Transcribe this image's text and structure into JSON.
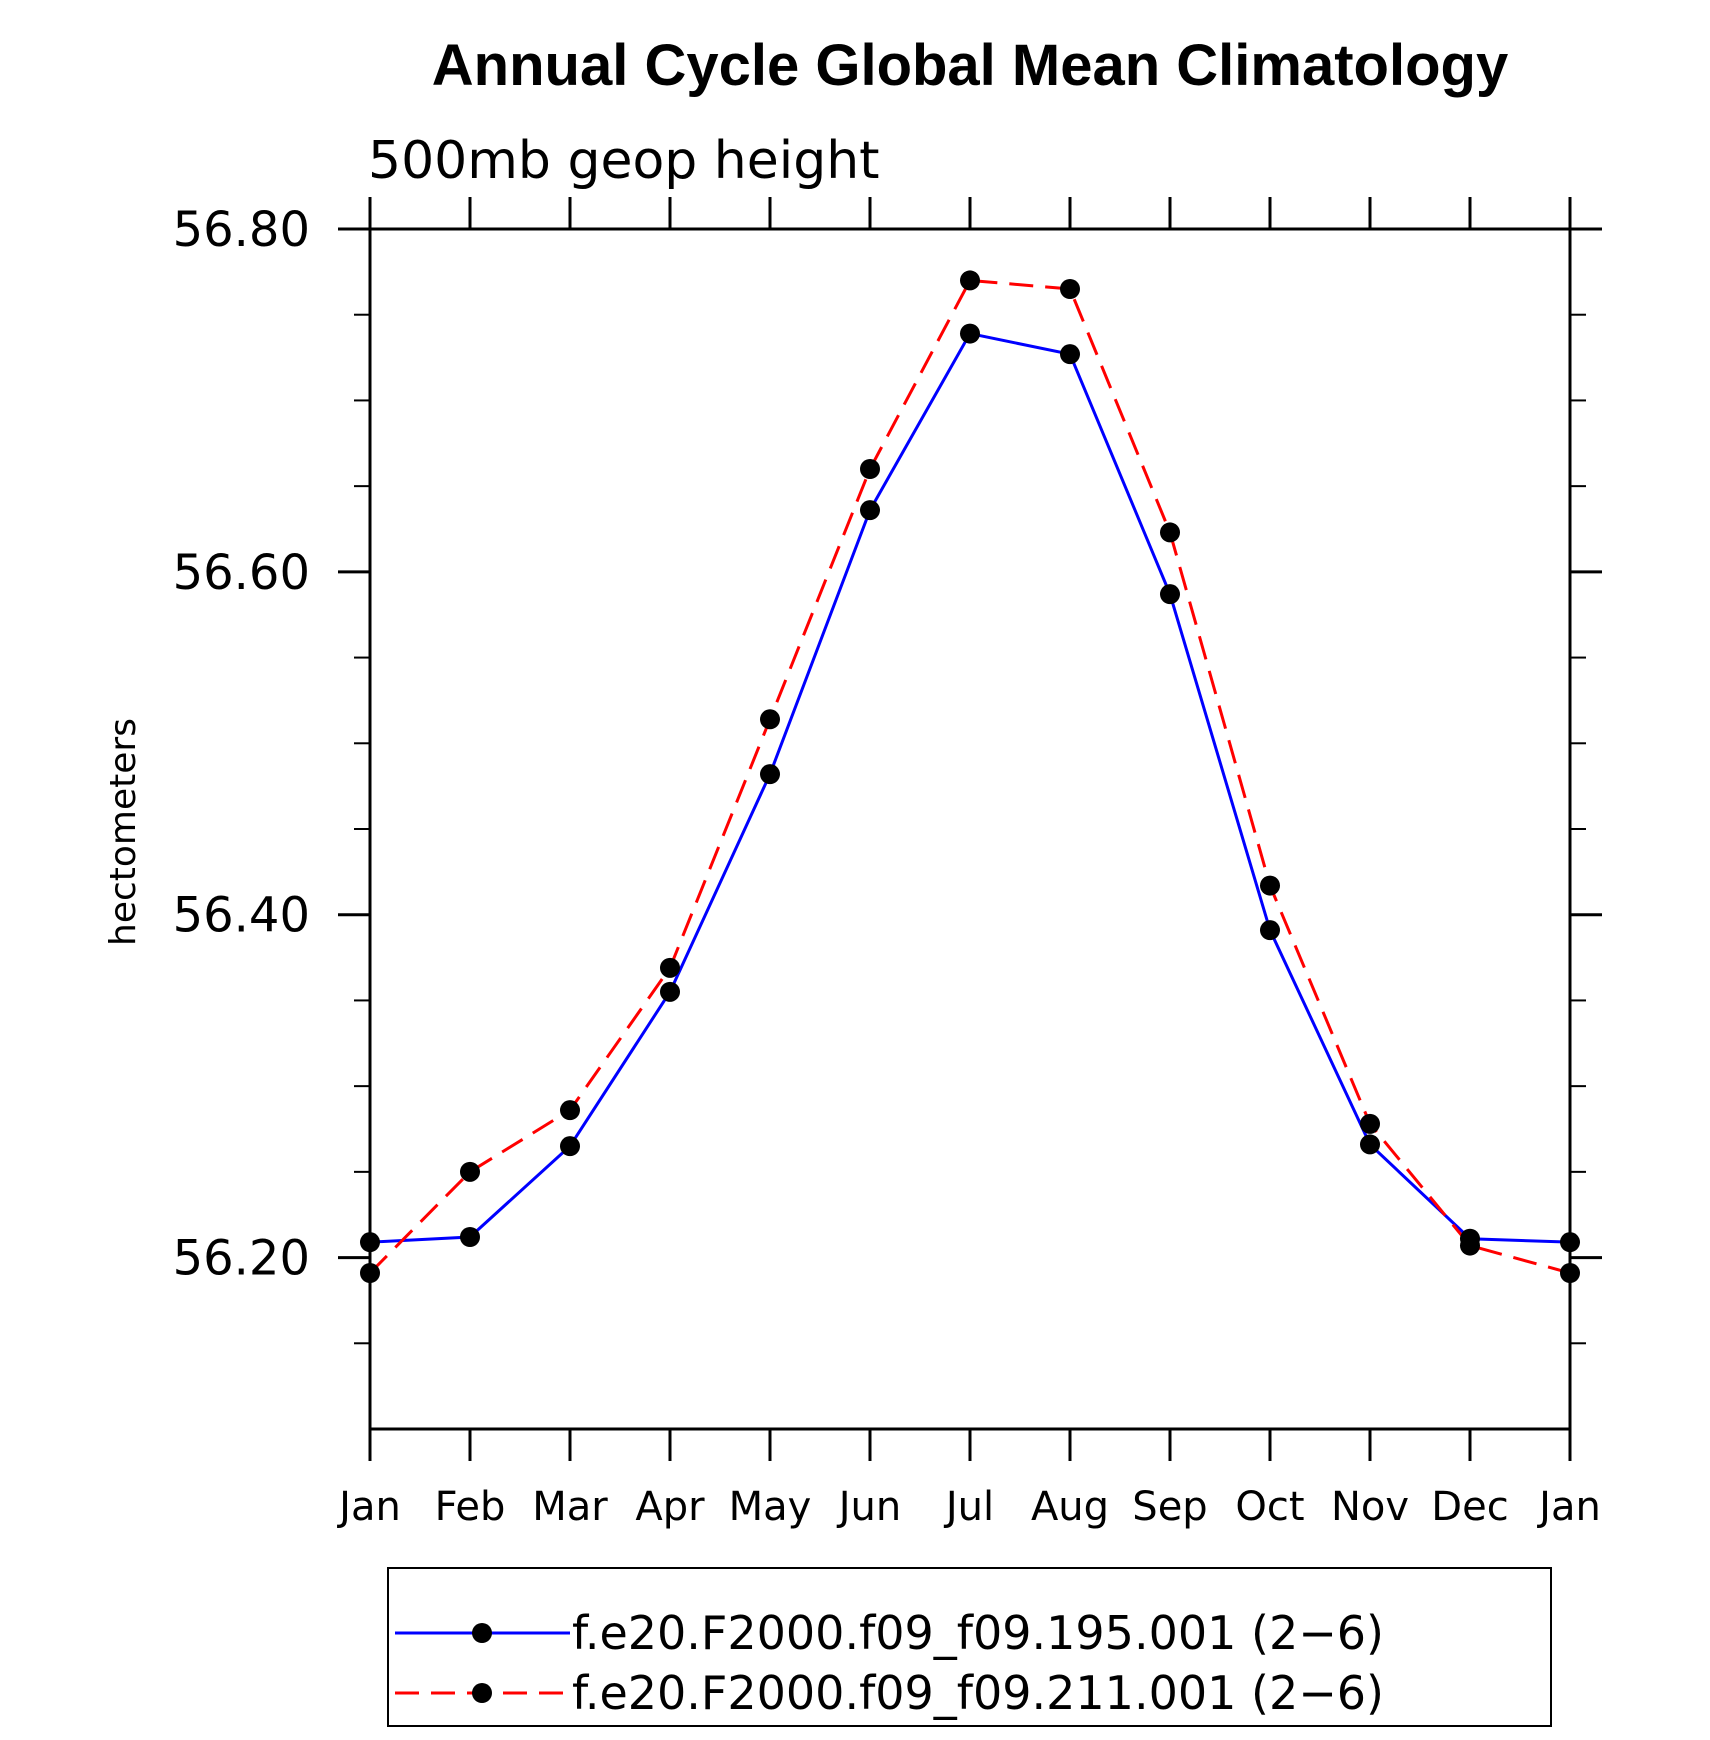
{
  "chart_data": {
    "type": "line",
    "title": "Annual Cycle Global Mean Climatology",
    "subtitle": "500mb geop height",
    "ylabel": "hectometers",
    "xlabel": "",
    "categories": [
      "Jan",
      "Feb",
      "Mar",
      "Apr",
      "May",
      "Jun",
      "Jul",
      "Aug",
      "Sep",
      "Oct",
      "Nov",
      "Dec",
      "Jan"
    ],
    "ylim": [
      56.1,
      56.8
    ],
    "yticks": [
      56.2,
      56.4,
      56.6,
      56.8
    ],
    "ytick_labels": [
      "56.20",
      "56.40",
      "56.60",
      "56.80"
    ],
    "yminor_step": 0.05,
    "series": [
      {
        "name": "f.e20.F2000.f09_f09.195.001 (2−6)",
        "color": "#0000ff",
        "line_style": "solid",
        "marker": "filled-circle",
        "values": [
          56.209,
          56.212,
          56.265,
          56.355,
          56.482,
          56.636,
          56.739,
          56.727,
          56.587,
          56.391,
          56.266,
          56.211,
          56.209
        ]
      },
      {
        "name": "f.e20.F2000.f09_f09.211.001 (2−6)",
        "color": "#ff0000",
        "line_style": "dashed",
        "marker": "filled-circle",
        "values": [
          56.191,
          56.25,
          56.286,
          56.369,
          56.514,
          56.66,
          56.77,
          56.765,
          56.623,
          56.417,
          56.278,
          56.207,
          56.191
        ]
      }
    ],
    "legend_position": "bottom"
  }
}
